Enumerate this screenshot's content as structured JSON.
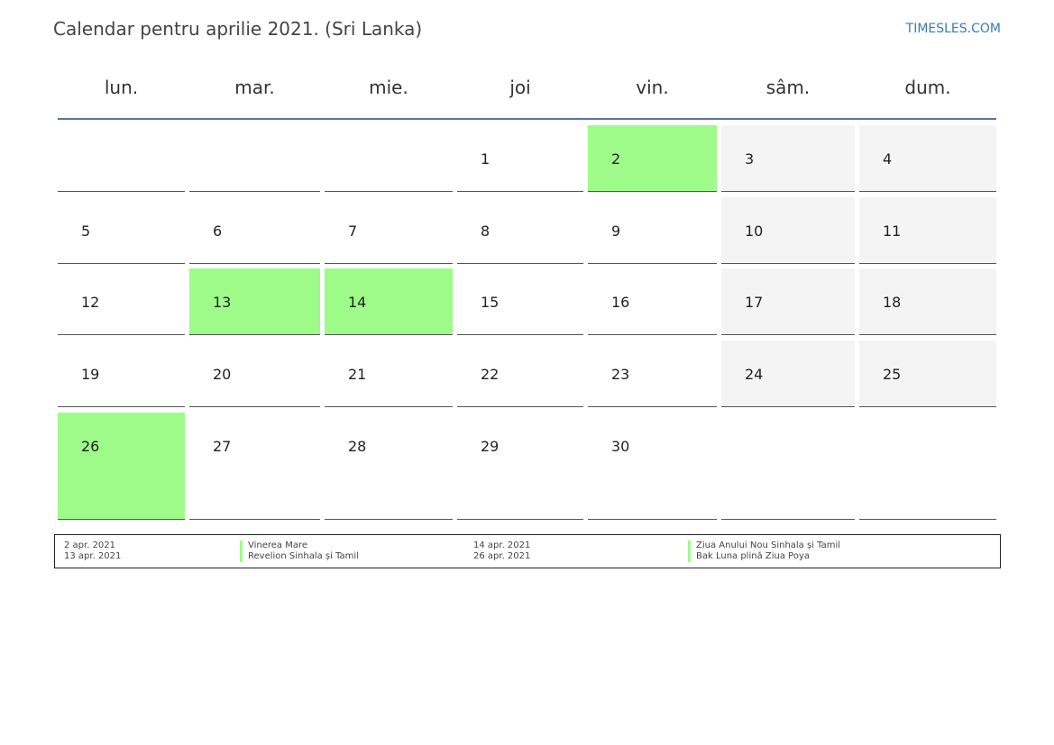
{
  "header": {
    "title": "Calendar pentru aprilie 2021. (Sri Lanka)",
    "brand": "TIMESLES.COM"
  },
  "colors": {
    "holiday": "#9efb8a",
    "weekend": "#f4f4f4",
    "rule": "#5b7498",
    "brand": "#3a7ab8"
  },
  "weekdays": [
    "lun.",
    "mar.",
    "mie.",
    "joi",
    "vin.",
    "sâm.",
    "dum."
  ],
  "weeks": [
    [
      null,
      null,
      null,
      "1",
      "2",
      "3",
      "4"
    ],
    [
      "5",
      "6",
      "7",
      "8",
      "9",
      "10",
      "11"
    ],
    [
      "12",
      "13",
      "14",
      "15",
      "16",
      "17",
      "18"
    ],
    [
      "19",
      "20",
      "21",
      "22",
      "23",
      "24",
      "25"
    ],
    [
      "26",
      "27",
      "28",
      "29",
      "30",
      null,
      null
    ]
  ],
  "holiday_days": [
    "2",
    "13",
    "14",
    "26"
  ],
  "legend": [
    {
      "date": "2 apr. 2021",
      "name": "Vinerea Mare"
    },
    {
      "date": "13 apr. 2021",
      "name": "Revelion Sinhala și Tamil"
    },
    {
      "date": "14 apr. 2021",
      "name": "Ziua Anului Nou Sinhala și Tamil"
    },
    {
      "date": "26 apr. 2021",
      "name": "Bak Luna plină Ziua Poya"
    }
  ]
}
